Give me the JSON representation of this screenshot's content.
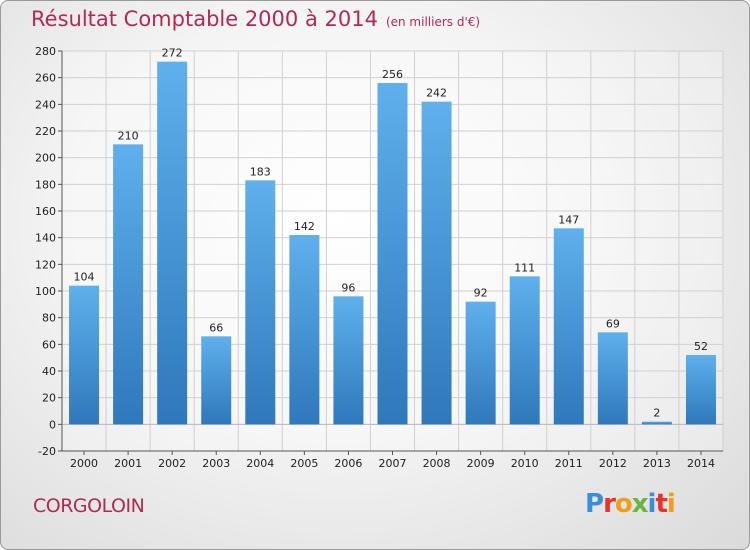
{
  "chart_data": {
    "type": "bar",
    "title": "Résultat Comptable 2000 à 2014",
    "subtitle": "(en milliers d'€)",
    "categories": [
      "2000",
      "2001",
      "2002",
      "2003",
      "2004",
      "2005",
      "2006",
      "2007",
      "2008",
      "2009",
      "2010",
      "2011",
      "2012",
      "2013",
      "2014"
    ],
    "values": [
      104,
      210,
      272,
      66,
      183,
      142,
      96,
      256,
      242,
      92,
      111,
      147,
      69,
      2,
      52
    ],
    "ylim": [
      -20,
      280
    ],
    "yticks": [
      -20,
      0,
      20,
      40,
      60,
      80,
      100,
      120,
      140,
      160,
      180,
      200,
      220,
      240,
      260,
      280
    ],
    "grid": true,
    "bar_color": "#4a9ad9"
  },
  "commune": "CORGOLOIN",
  "brand": {
    "letters": [
      "P",
      "r",
      "o",
      "x",
      "i",
      "t",
      "i"
    ],
    "colors": [
      "#3c8fd6",
      "#e9322e",
      "#f39d1a",
      "#6ab540",
      "#3c8fd6",
      "#e9322e",
      "#f39d1a"
    ]
  }
}
